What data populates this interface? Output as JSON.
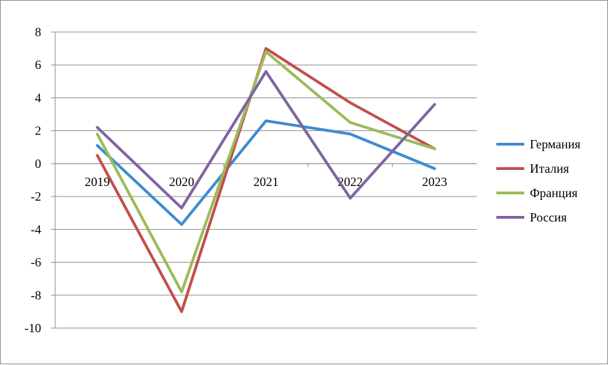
{
  "chart_data": {
    "type": "line",
    "categories": [
      "2019",
      "2020",
      "2021",
      "2022",
      "2023"
    ],
    "series": [
      {
        "name": "Германия",
        "color": "#3f8ccf",
        "values": [
          1.1,
          -3.7,
          2.6,
          1.8,
          -0.3
        ]
      },
      {
        "name": "Италия",
        "color": "#c0504d",
        "values": [
          0.5,
          -9.0,
          7.0,
          3.7,
          0.9
        ]
      },
      {
        "name": "Франция",
        "color": "#9bbb59",
        "values": [
          1.8,
          -7.8,
          6.8,
          2.5,
          0.9
        ]
      },
      {
        "name": "Россия",
        "color": "#8064a2",
        "values": [
          2.2,
          -2.7,
          5.6,
          -2.1,
          3.6
        ]
      }
    ],
    "ylim": [
      -10,
      8
    ],
    "yticks": [
      8,
      6,
      4,
      2,
      0,
      -2,
      -4,
      -6,
      -8,
      -10
    ],
    "grid": true,
    "legend": "right",
    "title": "",
    "xlabel": "",
    "ylabel": ""
  }
}
